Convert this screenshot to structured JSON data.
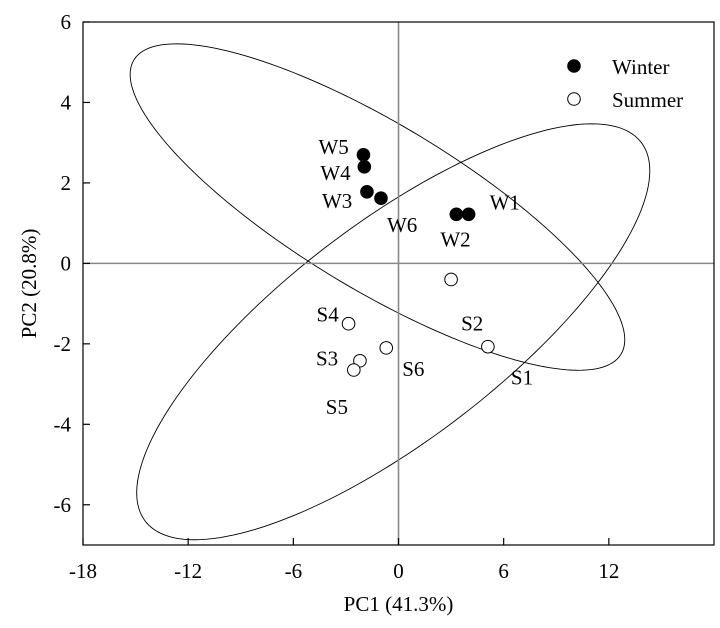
{
  "chart_data": {
    "type": "scatter",
    "title": "",
    "xlabel": "PC1 (41.3%)",
    "ylabel": "PC2 (20.8%)",
    "xlim": [
      -18,
      18
    ],
    "ylim": [
      -7,
      6
    ],
    "xticks": [
      -18,
      -12,
      -6,
      0,
      6,
      12
    ],
    "yticks": [
      -6,
      -4,
      -2,
      0,
      2,
      4,
      6
    ],
    "xtick_labels": [
      "-18",
      "-12",
      "-6",
      "0",
      "6",
      "12"
    ],
    "ytick_labels": [
      "-6",
      "-4",
      "-2",
      "0",
      "2",
      "4",
      "6"
    ],
    "grid": false,
    "legend_position": "top-right",
    "series": [
      {
        "name": "Winter",
        "marker": "filled-circle",
        "color": "#000000",
        "points": [
          {
            "label": "W1",
            "x": 4.0,
            "y": 1.22
          },
          {
            "label": "W2",
            "x": 3.3,
            "y": 1.22
          },
          {
            "label": "W3",
            "x": -1.8,
            "y": 1.78
          },
          {
            "label": "W4",
            "x": -1.95,
            "y": 2.4
          },
          {
            "label": "W5",
            "x": -2.0,
            "y": 2.7
          },
          {
            "label": "W6",
            "x": -1.0,
            "y": 1.62
          }
        ]
      },
      {
        "name": "Summer",
        "marker": "open-circle",
        "color": "#000000",
        "points": [
          {
            "label": "S1",
            "x": 5.1,
            "y": -2.07
          },
          {
            "label": "S2",
            "x": 3.0,
            "y": -0.4
          },
          {
            "label": "S3",
            "x": -2.2,
            "y": -2.42
          },
          {
            "label": "S4",
            "x": -2.85,
            "y": -1.5
          },
          {
            "label": "S5",
            "x": -2.55,
            "y": -2.65
          },
          {
            "label": "S6",
            "x": -0.7,
            "y": -2.1
          }
        ]
      }
    ],
    "reference_lines": {
      "x": 0,
      "y": 0
    },
    "confidence_ellipses": [
      {
        "series": "Winter",
        "center": [
          -1.2,
          1.4
        ],
        "semi_major": 14.5,
        "semi_minor": 2.3,
        "angle_deg": -13.5
      },
      {
        "series": "Summer",
        "center": [
          -0.3,
          -1.7
        ],
        "semi_major": 15.2,
        "semi_minor": 3.15,
        "angle_deg": 16
      }
    ]
  }
}
